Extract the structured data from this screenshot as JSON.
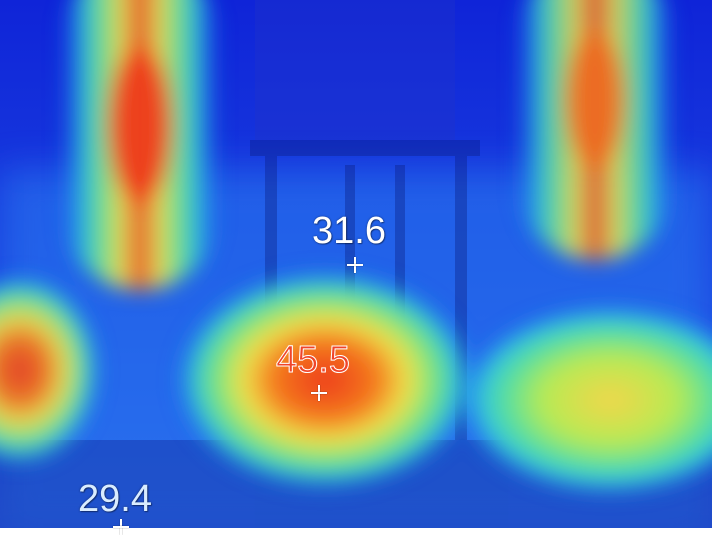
{
  "thermal_view": {
    "measurements": [
      {
        "value": "31.6",
        "marker_color": "#ffffff"
      },
      {
        "value": "45.5",
        "marker_color": "#ffffff"
      },
      {
        "value": "29.4",
        "marker_color": "#ffffff"
      }
    ],
    "palette_colors": {
      "cold": "#0a1fd6",
      "cool": "#1f77ff",
      "mid": "#49d7b1",
      "warm": "#f0e34a",
      "hot": "#ee3a1c"
    }
  }
}
